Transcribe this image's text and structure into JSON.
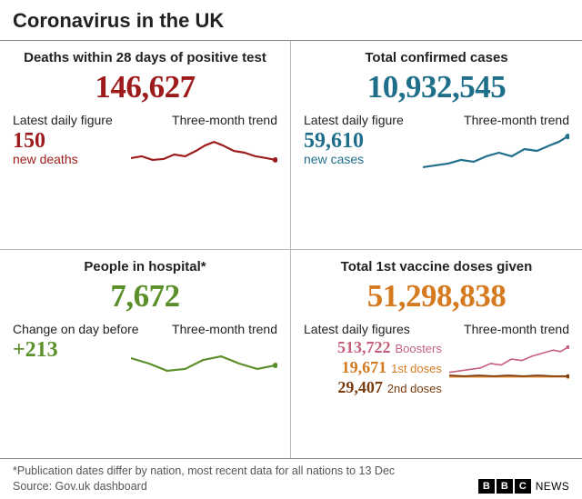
{
  "title": "Coronavirus in the UK",
  "panels": {
    "deaths": {
      "title": "Deaths within 28 days of positive test",
      "big_number": "146,627",
      "color": "#9e1b1b",
      "daily_label": "Latest daily figure",
      "trend_label": "Three-month trend",
      "daily_figure": "150",
      "daily_sublabel": "new deaths",
      "spark": {
        "points": [
          0,
          32,
          12,
          30,
          24,
          34,
          36,
          33,
          48,
          28,
          60,
          30,
          72,
          24,
          82,
          18,
          92,
          14,
          102,
          18,
          114,
          24,
          126,
          26,
          138,
          30,
          150,
          32,
          160,
          34
        ],
        "stroke": "#9e1b1b",
        "stroke_width": 2.2,
        "dot": true
      }
    },
    "cases": {
      "title": "Total confirmed cases",
      "big_number": "10,932,545",
      "color": "#1f6f8b",
      "daily_label": "Latest daily figure",
      "trend_label": "Three-month trend",
      "daily_figure": "59,610",
      "daily_sublabel": "new cases",
      "spark": {
        "points": [
          0,
          42,
          14,
          40,
          28,
          38,
          42,
          34,
          56,
          36,
          70,
          30,
          84,
          26,
          98,
          30,
          112,
          22,
          126,
          24,
          140,
          18,
          150,
          14,
          160,
          8
        ],
        "stroke": "#1f6f8b",
        "stroke_width": 2.2,
        "dot": true
      }
    },
    "hospital": {
      "title": "People in hospital*",
      "big_number": "7,672",
      "color": "#5a8f29",
      "daily_label": "Change on day before",
      "trend_label": "Three-month trend",
      "daily_figure": "+213",
      "daily_sublabel": "",
      "spark": {
        "points": [
          0,
          22,
          20,
          28,
          40,
          36,
          60,
          34,
          80,
          24,
          100,
          20,
          120,
          28,
          140,
          34,
          160,
          30
        ],
        "stroke": "#5a8f29",
        "stroke_width": 2.2,
        "dot": true
      }
    },
    "vaccines": {
      "title": "Total 1st vaccine doses given",
      "big_number": "51,298,838",
      "color": "#d57a1f",
      "daily_label": "Latest daily figures",
      "trend_label": "Three-month trend",
      "rows": [
        {
          "value": "513,722",
          "label": "Boosters",
          "color": "#c5607a"
        },
        {
          "value": "19,671",
          "label": "1st doses",
          "color": "#d57a1f"
        },
        {
          "value": "29,407",
          "label": "2nd doses",
          "color": "#7a3b0f"
        }
      ],
      "sparks": [
        {
          "points": [
            0,
            40,
            14,
            38,
            28,
            36,
            42,
            34,
            56,
            28,
            70,
            30,
            84,
            22,
            98,
            24,
            112,
            18,
            126,
            14,
            140,
            10,
            150,
            12,
            160,
            6
          ],
          "stroke": "#c5607a",
          "stroke_width": 2,
          "dot": true
        },
        {
          "points": [
            0,
            46,
            20,
            46,
            40,
            46,
            60,
            46,
            80,
            46,
            100,
            46,
            120,
            46,
            140,
            46,
            160,
            46
          ],
          "stroke": "#d57a1f",
          "stroke_width": 2,
          "dot": true
        },
        {
          "points": [
            0,
            44,
            20,
            45,
            40,
            44,
            60,
            45,
            80,
            44,
            100,
            45,
            120,
            44,
            140,
            45,
            160,
            45
          ],
          "stroke": "#7a3b0f",
          "stroke_width": 2,
          "dot": true
        }
      ]
    }
  },
  "footnote": "*Publication dates differ by nation, most recent data for all nations to 13 Dec",
  "source": "Source: Gov.uk dashboard",
  "logo": {
    "letters": [
      "B",
      "B",
      "C"
    ],
    "text": "NEWS"
  }
}
